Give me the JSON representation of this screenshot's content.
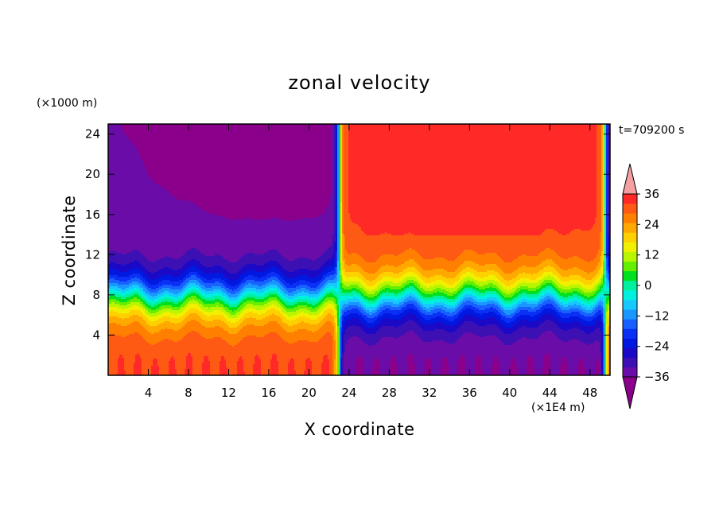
{
  "chart_data": {
    "type": "heatmap",
    "title": "zonal velocity",
    "xlabel": "X coordinate",
    "ylabel": "Z coordinate",
    "x_units": "(×1E4 m)",
    "y_units": "(×1000 m)",
    "time_label": "t=709200 s",
    "xlim": [
      0,
      50
    ],
    "ylim": [
      0,
      25
    ],
    "x_ticks": [
      4,
      8,
      12,
      16,
      20,
      24,
      28,
      32,
      36,
      40,
      44,
      48
    ],
    "x_tick_labels": [
      "4",
      "8",
      "12",
      "16",
      "20",
      "24",
      "28",
      "32",
      "36",
      "40",
      "44",
      "48"
    ],
    "y_ticks": [
      4,
      8,
      12,
      16,
      20,
      24
    ],
    "y_tick_labels": [
      "4",
      "8",
      "12",
      "16",
      "20",
      "24"
    ],
    "colorbar": {
      "levels": [
        -40,
        -36,
        -32,
        -28,
        -24,
        -20,
        -16,
        -12,
        -8,
        -4,
        0,
        4,
        8,
        12,
        16,
        20,
        24,
        28,
        32,
        36,
        40
      ],
      "colors": [
        "#8b008b",
        "#6a0ca8",
        "#3d10b4",
        "#1a0ac8",
        "#0018e0",
        "#0a30f5",
        "#1860ff",
        "#1a96ff",
        "#17c8ff",
        "#00f0e0",
        "#00f0a0",
        "#00e020",
        "#66ee00",
        "#b8f500",
        "#f0f000",
        "#ffd000",
        "#ffa800",
        "#ff8000",
        "#ff5a14",
        "#ff2a28",
        "#f5a0a0"
      ],
      "tick_values": [
        36,
        24,
        12,
        0,
        -12,
        -24,
        -36
      ],
      "tick_labels": [
        "36",
        "24",
        "12",
        "0",
        "−12",
        "−24",
        "−36"
      ]
    },
    "field_description": {
      "left_region_x": [
        0,
        23
      ],
      "right_region_x": [
        23,
        49.5
      ],
      "left_upper_value": -36,
      "left_surface_value": 32,
      "right_upper_value": 36,
      "right_surface_value": -32,
      "front_x": 23,
      "right_boundary_x": 49.5
    }
  }
}
